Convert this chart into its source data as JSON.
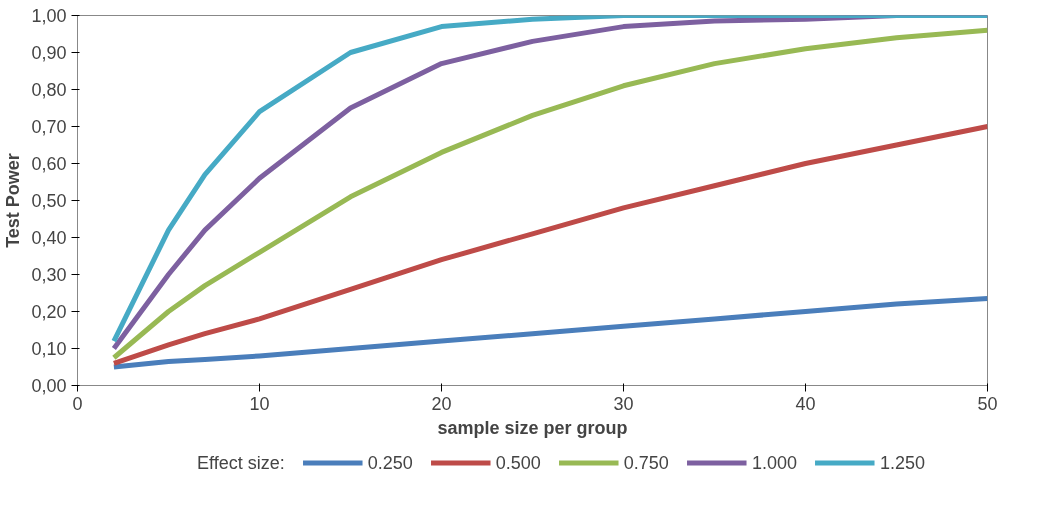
{
  "chart_data": {
    "type": "line",
    "xlabel": "sample size per group",
    "ylabel": "Test Power",
    "legend_title": "Effect size:",
    "legend": "bottom",
    "grid": false,
    "marker": "none",
    "line_style": "solid",
    "x": [
      2,
      5,
      7,
      10,
      15,
      20,
      25,
      30,
      35,
      40,
      45,
      50
    ],
    "xlim": [
      0,
      50
    ],
    "xticks": [
      0,
      10,
      20,
      30,
      40,
      50
    ],
    "ylim": [
      0,
      1
    ],
    "yticks": [
      {
        "value": 0,
        "label": "0,00"
      },
      {
        "value": 0.1,
        "label": "0,10"
      },
      {
        "value": 0.2,
        "label": "0,20"
      },
      {
        "value": 0.3,
        "label": "0,30"
      },
      {
        "value": 0.4,
        "label": "0,40"
      },
      {
        "value": 0.5,
        "label": "0,50"
      },
      {
        "value": 0.6,
        "label": "0,60"
      },
      {
        "value": 0.7,
        "label": "0,70"
      },
      {
        "value": 0.8,
        "label": "0,80"
      },
      {
        "value": 0.9,
        "label": "0,90"
      },
      {
        "value": 1,
        "label": "1,00"
      }
    ],
    "series": [
      {
        "name": "0.250",
        "color": "#4a7ebb",
        "values": [
          0.05,
          0.065,
          0.07,
          0.08,
          0.1,
          0.12,
          0.14,
          0.16,
          0.18,
          0.2,
          0.22,
          0.235
        ]
      },
      {
        "name": "0.500",
        "color": "#be4b48",
        "values": [
          0.06,
          0.11,
          0.14,
          0.18,
          0.26,
          0.34,
          0.41,
          0.48,
          0.54,
          0.6,
          0.65,
          0.7
        ]
      },
      {
        "name": "0.750",
        "color": "#98b954",
        "values": [
          0.075,
          0.2,
          0.27,
          0.36,
          0.51,
          0.63,
          0.73,
          0.81,
          0.87,
          0.91,
          0.94,
          0.96
        ]
      },
      {
        "name": "1.000",
        "color": "#7d60a0",
        "values": [
          0.1,
          0.3,
          0.42,
          0.56,
          0.75,
          0.87,
          0.93,
          0.97,
          0.985,
          0.99,
          1,
          1
        ]
      },
      {
        "name": "1.250",
        "color": "#46aac5",
        "values": [
          0.12,
          0.42,
          0.57,
          0.74,
          0.9,
          0.97,
          0.99,
          1,
          1,
          1,
          1,
          1
        ]
      }
    ]
  }
}
